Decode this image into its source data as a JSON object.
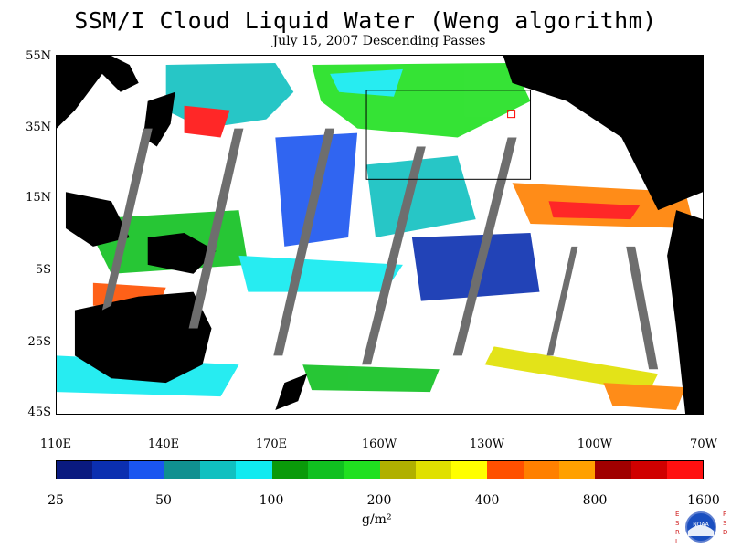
{
  "title": "SSM/I Cloud Liquid Water (Weng algorithm)",
  "subtitle": "July 15, 2007  Descending Passes",
  "map": {
    "lat_labels": [
      "55N",
      "35N",
      "15N",
      "5S",
      "25S",
      "45S"
    ],
    "lon_labels": [
      "110E",
      "140E",
      "170E",
      "160W",
      "130W",
      "100W",
      "70W"
    ],
    "ocean_color": "#ffffff",
    "land_color": "#000000",
    "swath_gap_color": "#6e6e6e"
  },
  "colorbar": {
    "colors": [
      "#0a1a80",
      "#0b2fb0",
      "#1a55f0",
      "#109090",
      "#10c0c0",
      "#10eaf0",
      "#0a9a0a",
      "#10c020",
      "#20e020",
      "#b0b000",
      "#e0e000",
      "#ffff00",
      "#ff5000",
      "#ff8000",
      "#ffa000",
      "#a00000",
      "#d00000",
      "#ff1010"
    ],
    "tick_labels": [
      "25",
      "50",
      "100",
      "200",
      "400",
      "800",
      "1600"
    ],
    "units": "g/m²"
  },
  "logo": {
    "left_text": "ESRL",
    "right_text": "PSD",
    "center_text": "NOAA"
  }
}
